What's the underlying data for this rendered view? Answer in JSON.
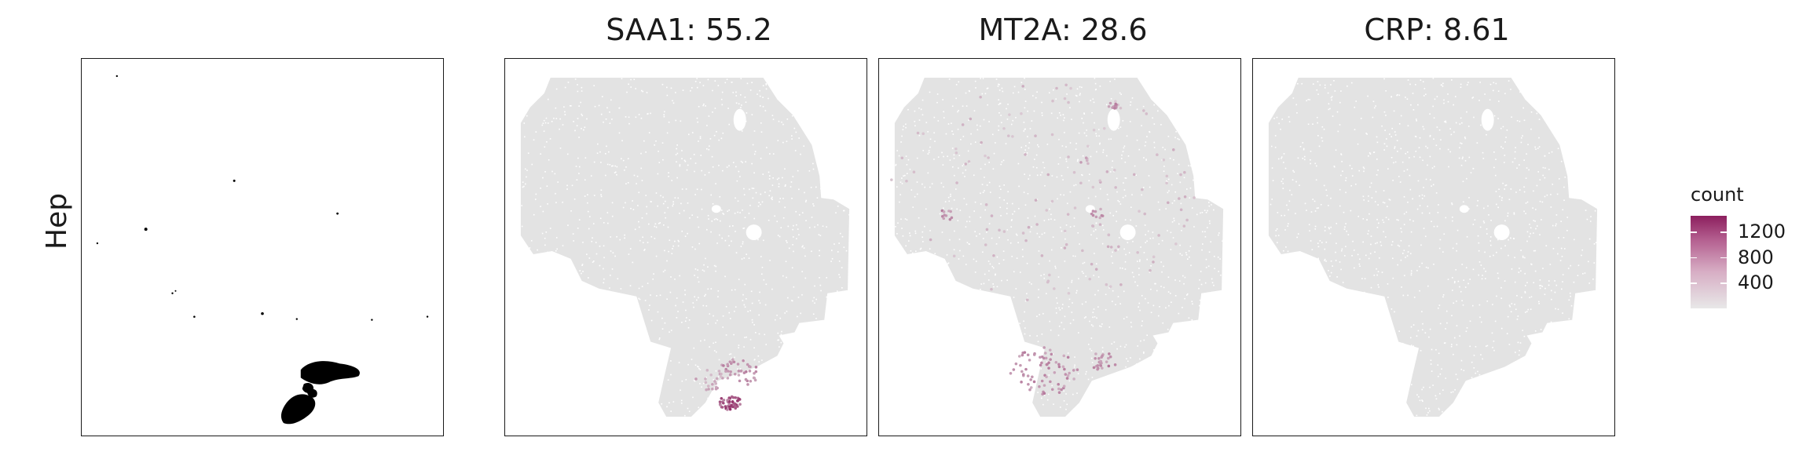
{
  "row_label": "Hep",
  "legend": {
    "title": "count",
    "labels": [
      "1200",
      "800",
      "400"
    ],
    "ticks": [
      1200,
      800,
      400
    ],
    "min": 0,
    "max": 1450,
    "colors": [
      "#e8e8e8",
      "#8c1f5e"
    ]
  },
  "panels": [
    {
      "title": "",
      "type": "annotation"
    },
    {
      "title": "SAA1: 55.2",
      "type": "expression"
    },
    {
      "title": "MT2A: 28.6",
      "type": "expression"
    },
    {
      "title": "CRP: 8.61",
      "type": "expression"
    }
  ],
  "chart_data": [
    {
      "type": "scatter",
      "title": "",
      "xlabel": "",
      "ylabel": "Hep",
      "grid": false,
      "series": [
        {
          "color": "#000000",
          "points_description": "scattered single cells plus two dense clusters at bottom-right"
        }
      ]
    },
    {
      "type": "heatmap",
      "title": "SAA1: 55.2",
      "gene": "SAA1",
      "score": 55.2,
      "color_scale": "count",
      "hotspot": "bottom lobe",
      "max_count": 1400
    },
    {
      "type": "heatmap",
      "title": "MT2A: 28.6",
      "gene": "MT2A",
      "score": 28.6,
      "color_scale": "count",
      "hotspot": "diffuse, bottom lobe and upper spots",
      "max_count": 900
    },
    {
      "type": "heatmap",
      "title": "CRP: 8.61",
      "gene": "CRP",
      "score": 8.61,
      "color_scale": "count",
      "hotspot": "none",
      "max_count": 200
    }
  ]
}
